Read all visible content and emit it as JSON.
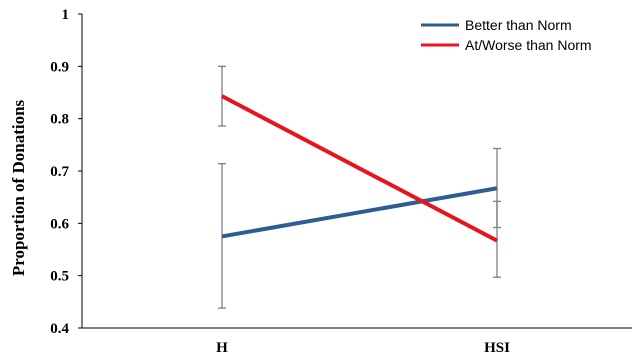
{
  "chart_data": {
    "type": "line",
    "title": "",
    "xlabel": "",
    "ylabel": "Proportion of Donations",
    "categories": [
      "H",
      "HSI"
    ],
    "ylim": [
      0.4,
      1
    ],
    "yticks": [
      0.4,
      0.5,
      0.6,
      0.7,
      0.8,
      0.9,
      1
    ],
    "ytick_labels": [
      "0.4",
      "0.5",
      "0.6",
      "0.7",
      "0.8",
      "0.9",
      "1"
    ],
    "grid": false,
    "legend": "top-right",
    "error_bars": true,
    "series": [
      {
        "name": "Better than Norm",
        "color": "#2E5D94",
        "values": [
          0.575,
          0.667
        ],
        "err_low": [
          0.438,
          0.592
        ],
        "err_high": [
          0.714,
          0.743
        ]
      },
      {
        "name": "At/Worse than Norm",
        "color": "#E8141B",
        "values": [
          0.843,
          0.567
        ],
        "err_low": [
          0.786,
          0.497
        ],
        "err_high": [
          0.9,
          0.642
        ]
      }
    ]
  }
}
